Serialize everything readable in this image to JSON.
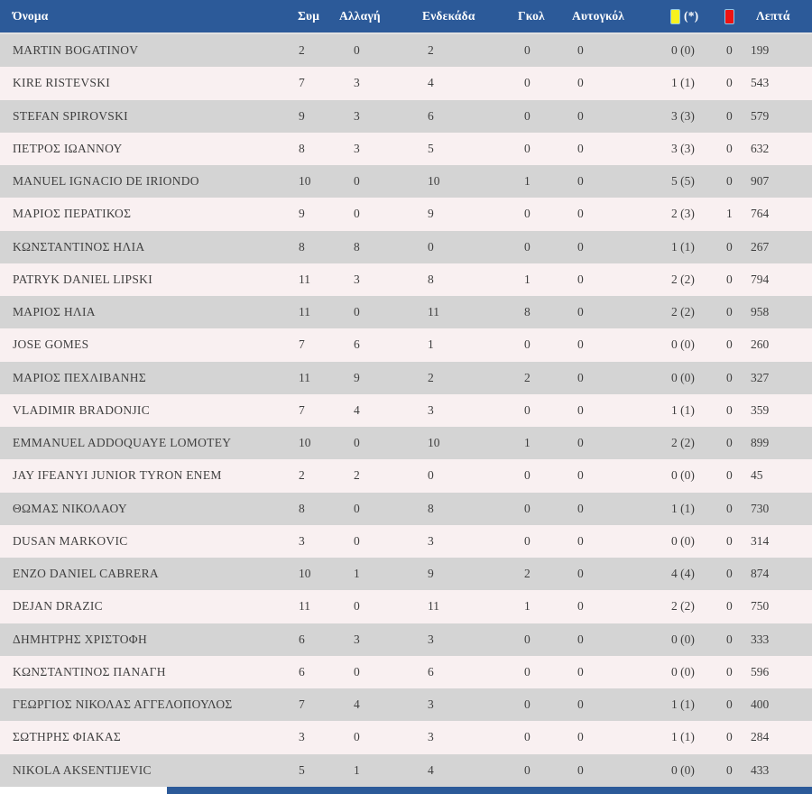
{
  "colors": {
    "header_bg": "#2c5a99",
    "header_text": "#ffffff",
    "row_odd": "#d4d4d4",
    "row_even": "#f9f0f1",
    "row_text": "#3f3f3f",
    "yellow_card": "#f7f21d",
    "red_card": "#ee1211",
    "card_border": "#8fc6e8",
    "separator": "#e2e2e2",
    "footer_bar": "#2c5a99",
    "page_bg": "#ffffff"
  },
  "table": {
    "columns": [
      {
        "key": "name",
        "label": "Όνομα"
      },
      {
        "key": "appearances",
        "label": "Συμ"
      },
      {
        "key": "substitution",
        "label": "Αλλαγή"
      },
      {
        "key": "starting-eleven",
        "label": "Ενδεκάδα"
      },
      {
        "key": "goals",
        "label": "Γκολ"
      },
      {
        "key": "own-goals",
        "label": "Αυτογκόλ"
      },
      {
        "key": "yellow-cards",
        "label": "(*)",
        "icon": "yellow-card-icon"
      },
      {
        "key": "red-cards",
        "label": "",
        "icon": "red-card-icon"
      },
      {
        "key": "minutes",
        "label": "Λεπτά"
      }
    ],
    "rows": [
      [
        "MARTIN BOGATINOV",
        "2",
        "0",
        "2",
        "0",
        "0",
        "0 (0)",
        "0",
        "199"
      ],
      [
        "KIRE RISTEVSKI",
        "7",
        "3",
        "4",
        "0",
        "0",
        "1 (1)",
        "0",
        "543"
      ],
      [
        "STEFAN SPIROVSKI",
        "9",
        "3",
        "6",
        "0",
        "0",
        "3 (3)",
        "0",
        "579"
      ],
      [
        "ΠΕΤΡΟΣ ΙΩΑΝΝΟΥ",
        "8",
        "3",
        "5",
        "0",
        "0",
        "3 (3)",
        "0",
        "632"
      ],
      [
        "MANUEL IGNACIO DE IRIONDO",
        "10",
        "0",
        "10",
        "1",
        "0",
        "5 (5)",
        "0",
        "907"
      ],
      [
        "ΜΑΡΙΟΣ ΠΕΡΑΤΙΚΟΣ",
        "9",
        "0",
        "9",
        "0",
        "0",
        "2 (3)",
        "1",
        "764"
      ],
      [
        "ΚΩΝΣΤΑΝΤΙΝΟΣ ΗΛΙΑ",
        "8",
        "8",
        "0",
        "0",
        "0",
        "1 (1)",
        "0",
        "267"
      ],
      [
        "PATRYK DANIEL LIPSKI",
        "11",
        "3",
        "8",
        "1",
        "0",
        "2 (2)",
        "0",
        "794"
      ],
      [
        "ΜΑΡΙΟΣ ΗΛΙΑ",
        "11",
        "0",
        "11",
        "8",
        "0",
        "2 (2)",
        "0",
        "958"
      ],
      [
        "JOSE GOMES",
        "7",
        "6",
        "1",
        "0",
        "0",
        "0 (0)",
        "0",
        "260"
      ],
      [
        "ΜΑΡΙΟΣ ΠΕΧΛΙΒΑΝΗΣ",
        "11",
        "9",
        "2",
        "2",
        "0",
        "0 (0)",
        "0",
        "327"
      ],
      [
        "VLADIMIR BRADONJIC",
        "7",
        "4",
        "3",
        "0",
        "0",
        "1 (1)",
        "0",
        "359"
      ],
      [
        "EMMANUEL ADDOQUAYE LOMOTEY",
        "10",
        "0",
        "10",
        "1",
        "0",
        "2 (2)",
        "0",
        "899"
      ],
      [
        "JAY IFEANYI JUNIOR TYRON ENEM",
        "2",
        "2",
        "0",
        "0",
        "0",
        "0 (0)",
        "0",
        "45"
      ],
      [
        "ΘΩΜΑΣ ΝΙΚΟΛΑΟΥ",
        "8",
        "0",
        "8",
        "0",
        "0",
        "1 (1)",
        "0",
        "730"
      ],
      [
        "DUSAN MARKOVIC",
        "3",
        "0",
        "3",
        "0",
        "0",
        "0 (0)",
        "0",
        "314"
      ],
      [
        "ENZO DANIEL CABRERA",
        "10",
        "1",
        "9",
        "2",
        "0",
        "4 (4)",
        "0",
        "874"
      ],
      [
        "DEJAN DRAZIC",
        "11",
        "0",
        "11",
        "1",
        "0",
        "2 (2)",
        "0",
        "750"
      ],
      [
        "ΔΗΜΗΤΡΗΣ ΧΡΙΣΤΟΦΗ",
        "6",
        "3",
        "3",
        "0",
        "0",
        "0 (0)",
        "0",
        "333"
      ],
      [
        "ΚΩΝΣΤΑΝΤΙΝΟΣ ΠΑΝΑΓΗ",
        "6",
        "0",
        "6",
        "0",
        "0",
        "0 (0)",
        "0",
        "596"
      ],
      [
        "ΓΕΩΡΓΙΟΣ ΝΙΚΟΛΑΣ ΑΓΓΕΛΟΠΟΥΛΟΣ",
        "7",
        "4",
        "3",
        "0",
        "0",
        "1 (1)",
        "0",
        "400"
      ],
      [
        "ΣΩΤΗΡΗΣ ΦΙΑΚΑΣ",
        "3",
        "0",
        "3",
        "0",
        "0",
        "1 (1)",
        "0",
        "284"
      ],
      [
        "NIKOLA AKSENTIJEVIC",
        "5",
        "1",
        "4",
        "0",
        "0",
        "0 (0)",
        "0",
        "433"
      ]
    ]
  }
}
